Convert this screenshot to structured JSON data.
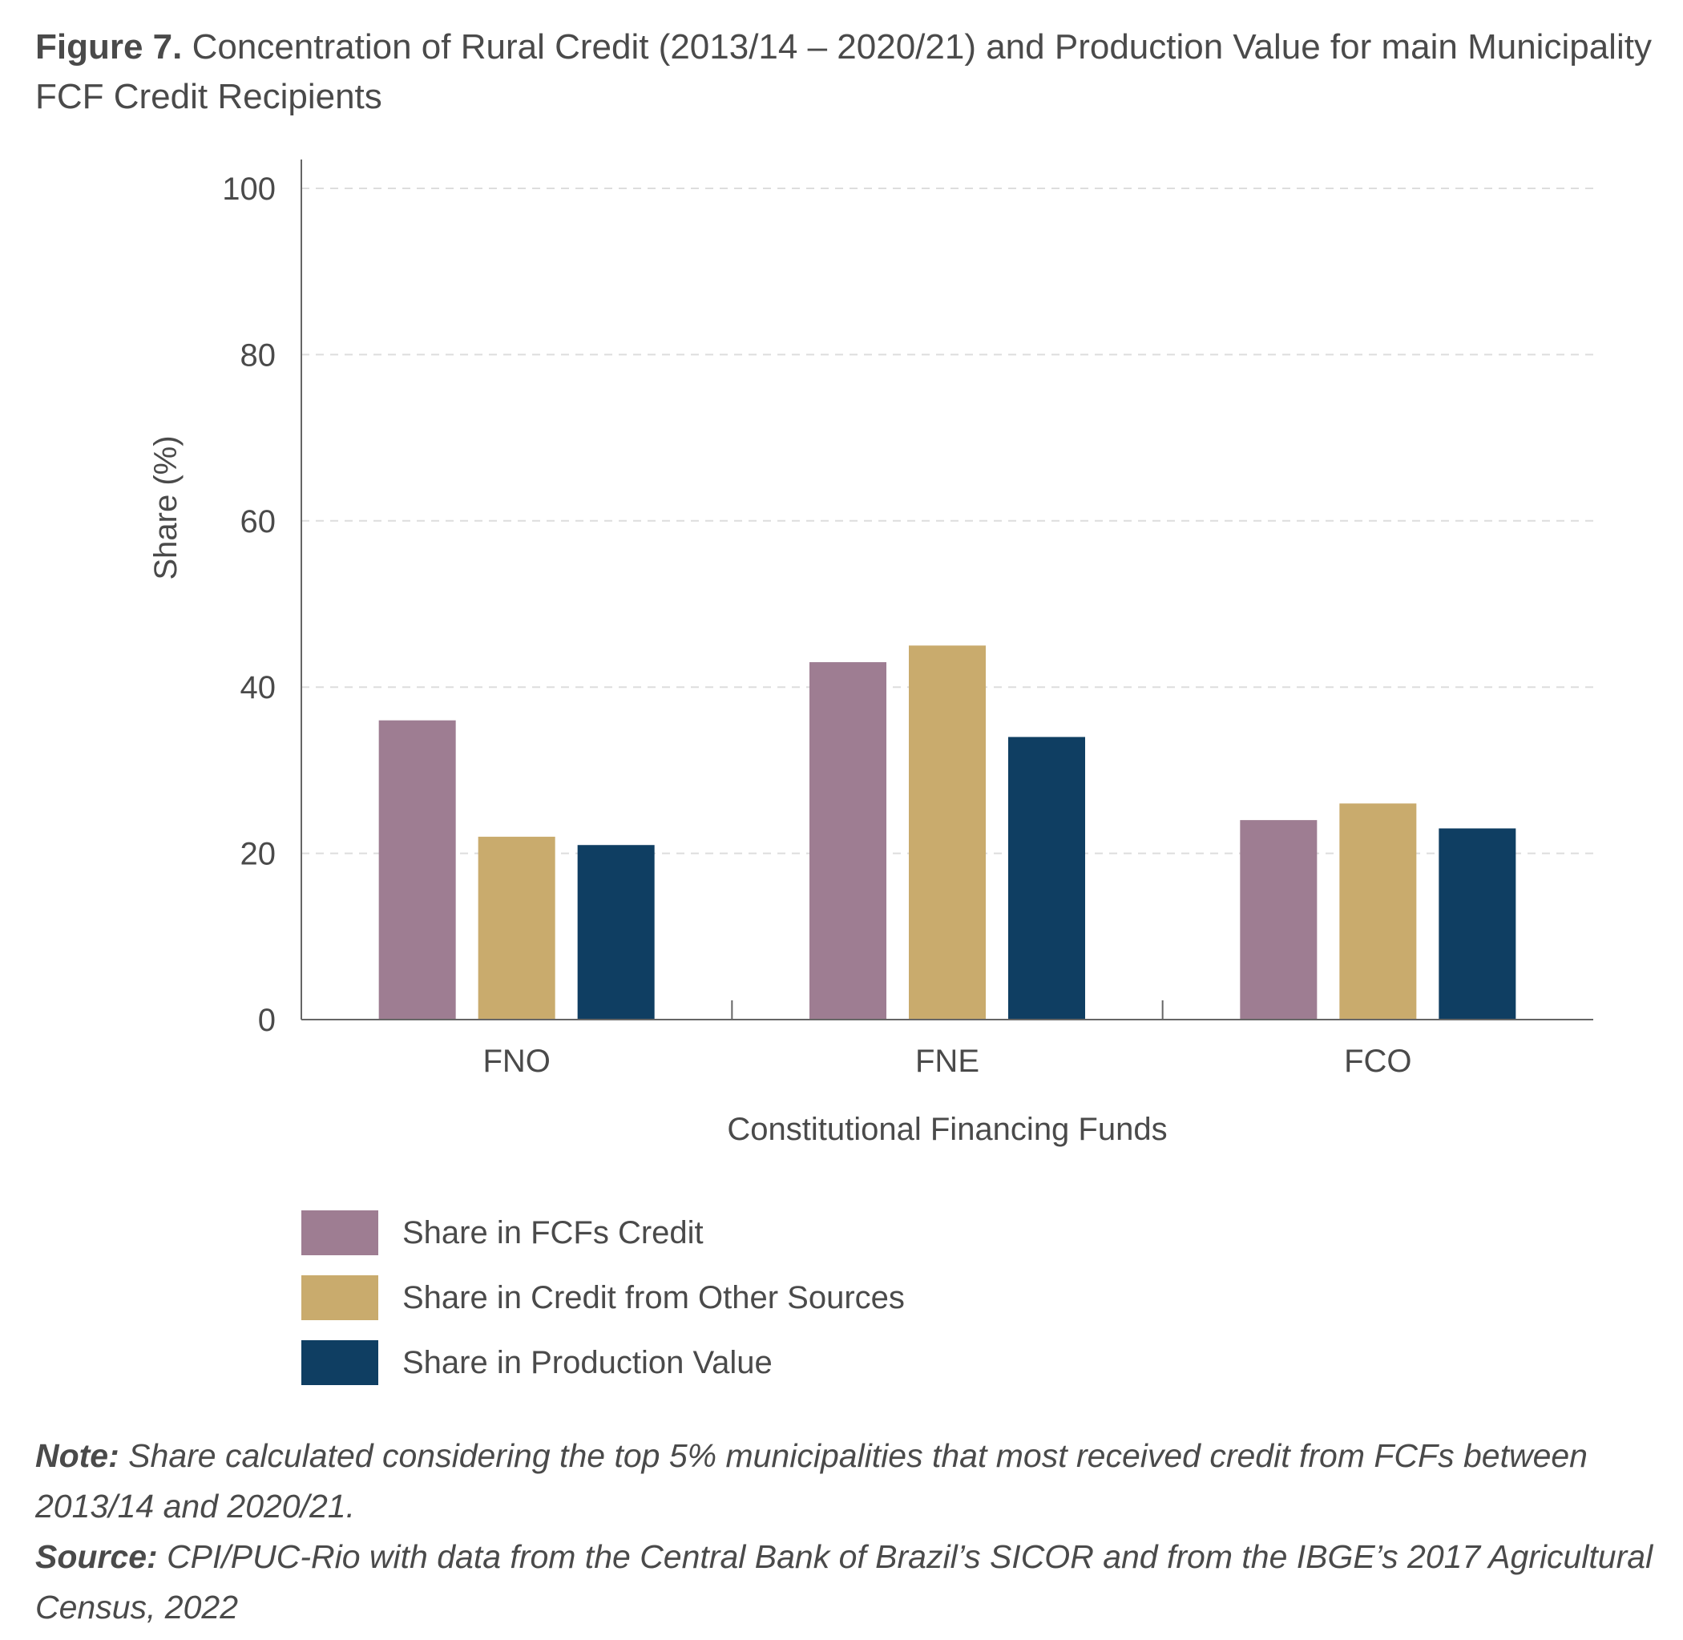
{
  "figure": {
    "label": "Figure 7.",
    "title": "Concentration of Rural Credit (2013/14 – 2020/21) and Production Value for main Municipality FCF Credit Recipients"
  },
  "colors": {
    "fcf_credit": "#9e7d92",
    "other_credit": "#c9ab6d",
    "production_value": "#0f3e62",
    "grid": "#dddddd",
    "axis": "#666666"
  },
  "chart_data": {
    "type": "bar",
    "categories": [
      "FNO",
      "FNE",
      "FCO"
    ],
    "series": [
      {
        "name": "Share in FCFs Credit",
        "values": [
          36,
          43,
          24
        ]
      },
      {
        "name": "Share in Credit from Other Sources",
        "values": [
          22,
          45,
          26
        ]
      },
      {
        "name": "Share in Production Value",
        "values": [
          21,
          34,
          23
        ]
      }
    ],
    "xlabel": "Constitutional Financing Funds",
    "ylabel": "Share (%)",
    "ylim": [
      0,
      100
    ],
    "yticks": [
      0,
      20,
      40,
      60,
      80,
      100
    ],
    "grid": true,
    "legend_position": "bottom-left"
  },
  "notes": {
    "note_label": "Note:",
    "note_text": "Share calculated considering the top 5% municipalities that most received credit from FCFs between 2013/14 and 2020/21.",
    "source_label": "Source:",
    "source_text": "CPI/PUC-Rio with data from the Central Bank of Brazil’s SICOR and from the IBGE’s 2017 Agricultural Census, 2022"
  }
}
